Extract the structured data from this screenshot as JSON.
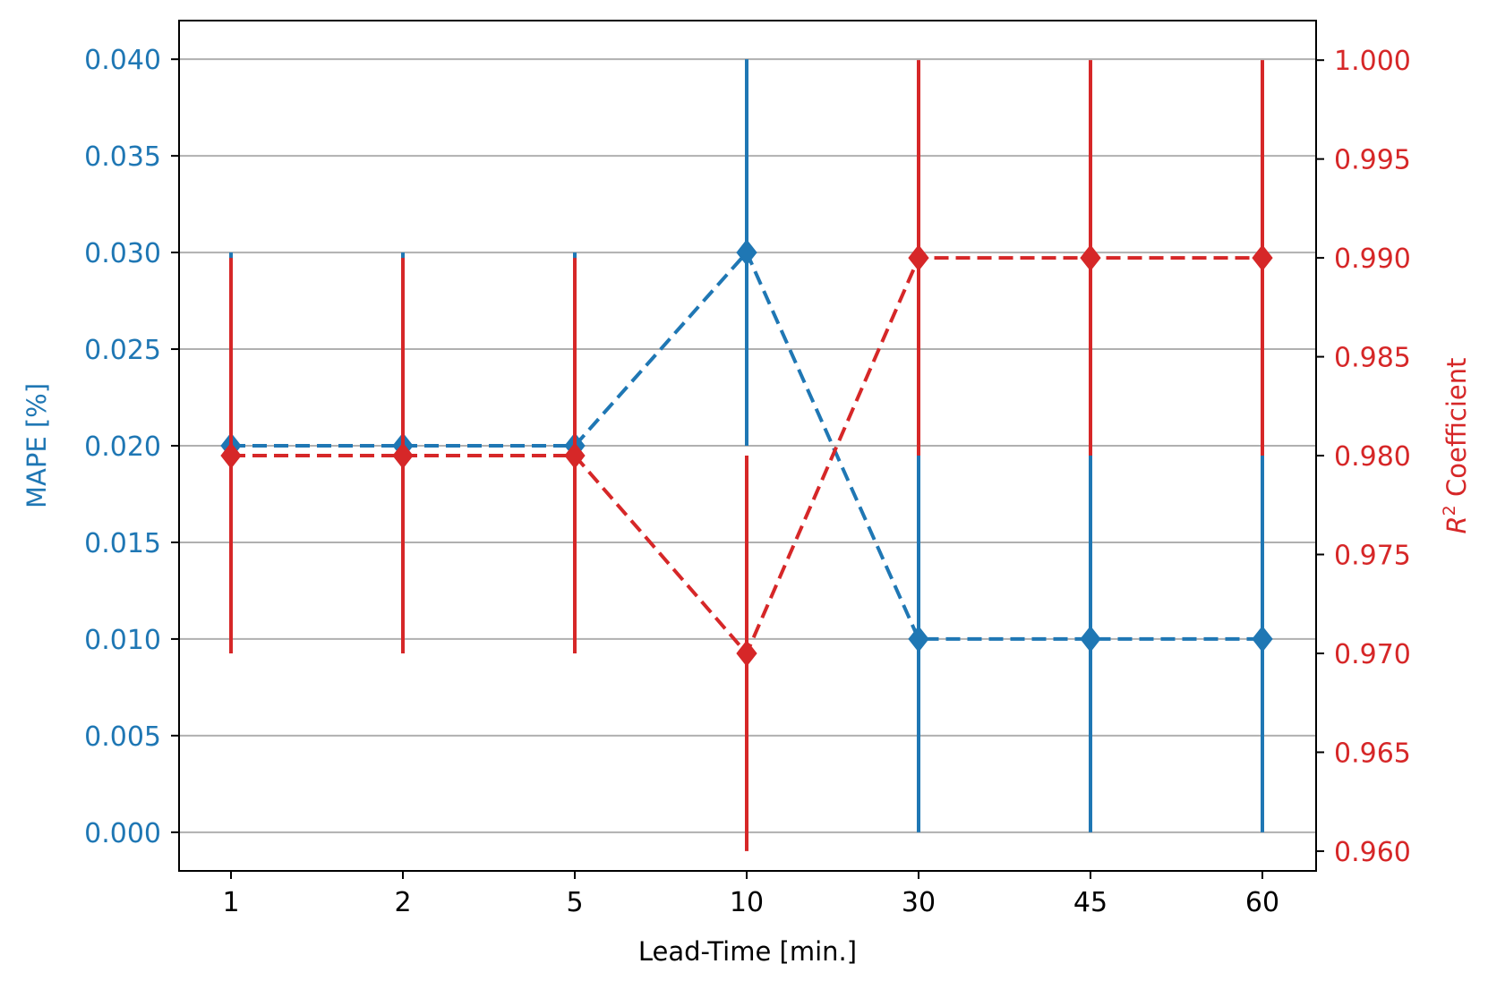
{
  "chart_data": {
    "type": "line",
    "xlabel": "Lead-Time [min.]",
    "ylabel_left": "MAPE [%]",
    "ylabel_right_base": "R",
    "ylabel_right_sup": "2",
    "ylabel_right_rest": " Coefficient",
    "categories": [
      "1",
      "2",
      "5",
      "10",
      "30",
      "45",
      "60"
    ],
    "left_axis": {
      "ylim": [
        -0.002,
        0.042
      ],
      "ticks": [
        "0.000",
        "0.005",
        "0.010",
        "0.015",
        "0.020",
        "0.025",
        "0.030",
        "0.035",
        "0.040"
      ],
      "color": "#1f77b4"
    },
    "right_axis": {
      "ylim": [
        0.959,
        1.002
      ],
      "ticks": [
        "0.960",
        "0.965",
        "0.970",
        "0.975",
        "0.980",
        "0.985",
        "0.990",
        "0.995",
        "1.000"
      ],
      "color": "#d62728"
    },
    "grid": true,
    "series": [
      {
        "axis": "left",
        "color": "#1f77b4",
        "values": [
          0.02,
          0.02,
          0.02,
          0.03,
          0.01,
          0.01,
          0.01
        ],
        "err_low": [
          0.01,
          0.01,
          0.01,
          0.02,
          0.0,
          0.0,
          0.0
        ],
        "err_high": [
          0.03,
          0.03,
          0.03,
          0.04,
          0.02,
          0.02,
          0.02
        ]
      },
      {
        "axis": "right",
        "color": "#d62728",
        "values": [
          0.98,
          0.98,
          0.98,
          0.97,
          0.99,
          0.99,
          0.99
        ],
        "err_low": [
          0.97,
          0.97,
          0.97,
          0.96,
          0.98,
          0.98,
          0.98
        ],
        "err_high": [
          0.99,
          0.99,
          0.99,
          0.98,
          1.0,
          1.0,
          1.0
        ]
      }
    ]
  }
}
